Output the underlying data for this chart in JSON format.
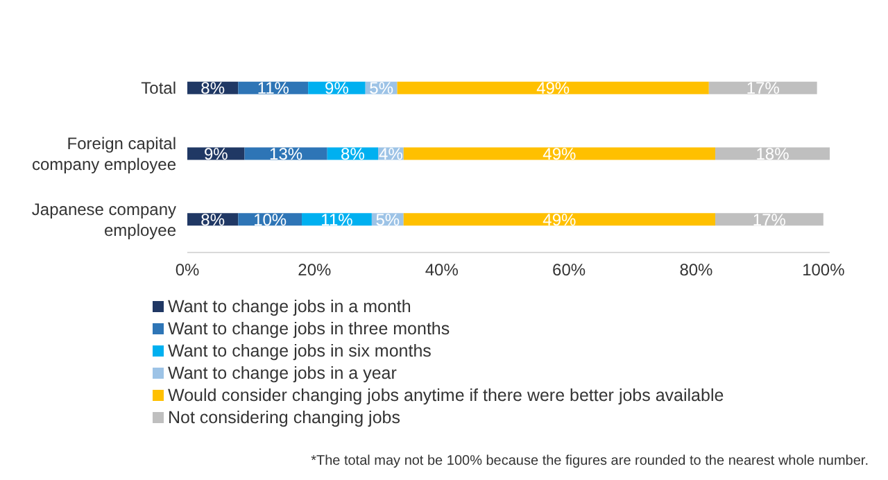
{
  "chart_data": {
    "type": "bar",
    "orientation": "horizontal",
    "stacked": true,
    "categories": [
      "Total",
      "Foreign capital company employee",
      "Japanese company employee"
    ],
    "series": [
      {
        "name": "Want to change jobs in a month",
        "color": "#203864",
        "values": [
          8,
          9,
          8
        ],
        "value_labels": [
          "8%",
          "9%",
          "8%"
        ]
      },
      {
        "name": "Want to change jobs in three months",
        "color": "#2e75b6",
        "values": [
          11,
          13,
          10
        ],
        "value_labels": [
          "11%",
          "13%",
          "10%"
        ]
      },
      {
        "name": "Want to change jobs in six months",
        "color": "#00b0f0",
        "values": [
          9,
          8,
          11
        ],
        "value_labels": [
          "9%",
          "8%",
          "11%"
        ]
      },
      {
        "name": "Want to change jobs in a year",
        "color": "#9dc3e6",
        "values": [
          5,
          4,
          5
        ],
        "value_labels": [
          "5%",
          "4%",
          "5%"
        ]
      },
      {
        "name": "Would consider changing jobs anytime if there were better jobs available",
        "color": "#ffc000",
        "values": [
          49,
          49,
          49
        ],
        "value_labels": [
          "49%",
          "49%",
          "49%"
        ]
      },
      {
        "name": "Not considering changing jobs",
        "color": "#bfbfbf",
        "values": [
          17,
          18,
          17
        ],
        "value_labels": [
          "17%",
          "18%",
          "17%"
        ]
      }
    ],
    "xlim": [
      0,
      101
    ],
    "xticks": [
      {
        "value": 0,
        "label": "0%"
      },
      {
        "value": 20,
        "label": "20%"
      },
      {
        "value": 40,
        "label": "40%"
      },
      {
        "value": 60,
        "label": "60%"
      },
      {
        "value": 80,
        "label": "80%"
      },
      {
        "value": 100,
        "label": "100%"
      }
    ],
    "grid": false,
    "legend": "bottom",
    "annotations": [
      "*The total may not be 100% because the figures are rounded to the nearest whole number."
    ]
  }
}
